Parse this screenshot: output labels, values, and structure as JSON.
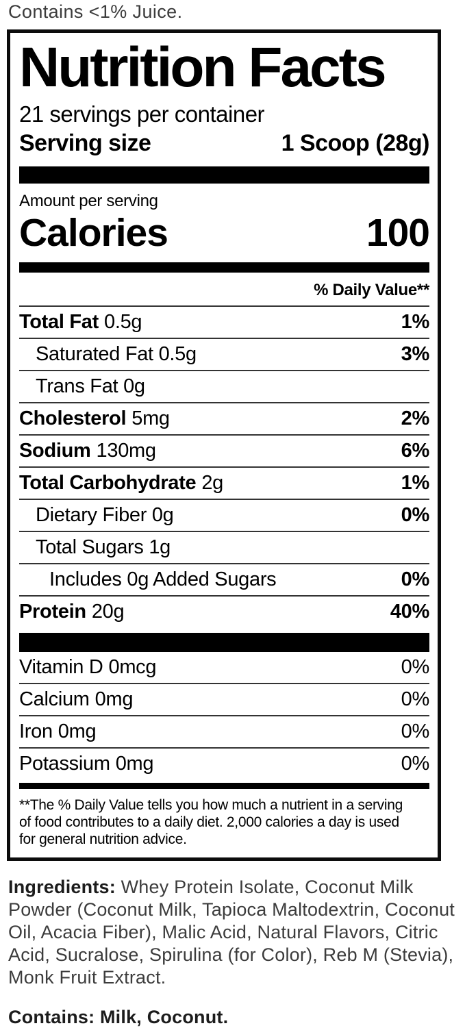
{
  "colors": {
    "ink": "#000000",
    "muted_text": "#3c3c3c",
    "panel_border": "#0c0c0c"
  },
  "top_note": "Contains <1% Juice.",
  "nutrition_facts": {
    "title": "Nutrition Facts",
    "servings_per_container": "21 servings per container",
    "serving_size_label": "Serving size",
    "serving_size_value": "1 Scoop (28g)",
    "amount_per_serving": "Amount per serving",
    "calories_label": "Calories",
    "calories_value": "100",
    "daily_value_header": "% Daily Value**",
    "rows": [
      {
        "name": "Total Fat",
        "amount": "0.5g",
        "dv": "1%"
      },
      {
        "name": "Saturated Fat 0.5g",
        "amount": "",
        "dv": "3%"
      },
      {
        "name": "Trans Fat 0g",
        "amount": "",
        "dv": ""
      },
      {
        "name": "Cholesterol",
        "amount": "5mg",
        "dv": "2%"
      },
      {
        "name": "Sodium",
        "amount": "130mg",
        "dv": "6%"
      },
      {
        "name": "Total Carbohydrate",
        "amount": "2g",
        "dv": "1%"
      },
      {
        "name": "Dietary Fiber 0g",
        "amount": "",
        "dv": "0%"
      },
      {
        "name": "Total Sugars 1g",
        "amount": "",
        "dv": ""
      },
      {
        "name": "Includes 0g Added Sugars",
        "amount": "",
        "dv": "0%"
      },
      {
        "name": "Protein",
        "amount": "20g",
        "dv": "40%"
      }
    ],
    "micronutrients": [
      {
        "name": "Vitamin D",
        "amount": "0mcg",
        "dv": "0%"
      },
      {
        "name": "Calcium",
        "amount": "0mg",
        "dv": "0%"
      },
      {
        "name": "Iron",
        "amount": "0mg",
        "dv": "0%"
      },
      {
        "name": "Potassium",
        "amount": "0mg",
        "dv": "0%"
      }
    ],
    "footnote": "**The % Daily Value tells you how much a nutrient in a serving of food contributes to a daily diet. 2,000 calories a day is used for general nutrition advice."
  },
  "ingredients": {
    "label": "Ingredients:",
    "text": " Whey Protein Isolate, Coconut Milk Powder (Coconut Milk, Tapioca Maltodextrin, Coconut Oil, Acacia Fiber), Malic Acid, Natural Flavors, Citric Acid, Sucralose, Spirulina (for Color), Reb M (Stevia), Monk Fruit Extract."
  },
  "allergens": "Contains: Milk, Coconut."
}
